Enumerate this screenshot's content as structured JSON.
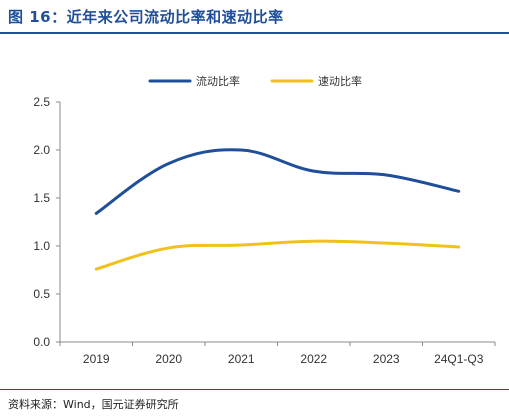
{
  "header": {
    "title": "图 16：近年来公司流动比率和速动比率"
  },
  "footer": {
    "source": "资料来源：Wind，国元证券研究所"
  },
  "chart_data": {
    "type": "line",
    "title": "",
    "xlabel": "",
    "ylabel": "",
    "categories": [
      "2019",
      "2020",
      "2021",
      "2022",
      "2023",
      "24Q1-Q3"
    ],
    "ylim": [
      0,
      2.5
    ],
    "yticks": [
      0.0,
      0.5,
      1.0,
      1.5,
      2.0,
      2.5
    ],
    "ytick_labels": [
      "0.0",
      "0.5",
      "1.0",
      "1.5",
      "2.0",
      "2.5"
    ],
    "grid": false,
    "legend_position": "top-center",
    "series": [
      {
        "name": "流动比率",
        "values": [
          1.34,
          1.86,
          2.0,
          1.78,
          1.74,
          1.57
        ],
        "color": "#1f4e9a"
      },
      {
        "name": "速动比率",
        "values": [
          0.76,
          0.98,
          1.01,
          1.05,
          1.03,
          0.99
        ],
        "color": "#f2c01d"
      }
    ]
  }
}
